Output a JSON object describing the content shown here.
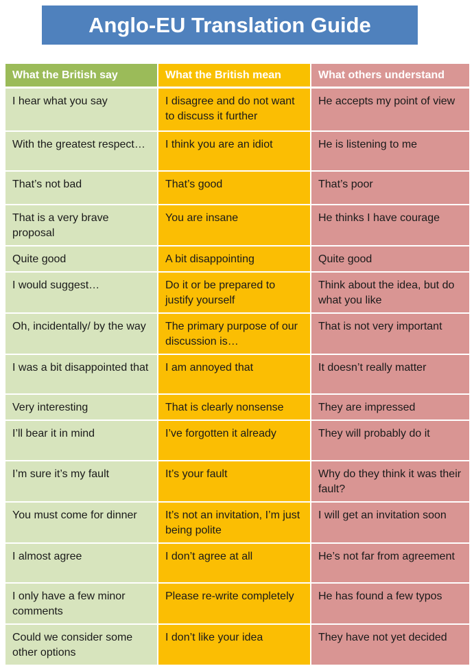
{
  "title": "Anglo-EU Translation Guide",
  "headers": [
    "What the British say",
    "What the British mean",
    "What others understand"
  ],
  "rows": [
    [
      "I hear what you say",
      "I disagree and do not want to discuss it further",
      "He accepts my point of view"
    ],
    [
      "With the greatest respect…",
      "I think you are an idiot",
      "He is listening to me"
    ],
    [
      "That’s not bad",
      "That’s good",
      "That’s poor"
    ],
    [
      "That is a very brave proposal",
      "You are insane",
      "He thinks I have courage"
    ],
    [
      "Quite good",
      "A bit disappointing",
      "Quite good"
    ],
    [
      "I would suggest…",
      "Do it or be prepared to justify yourself",
      "Think about the idea, but do what you like"
    ],
    [
      "Oh, incidentally/ by the way",
      "The primary purpose of our discussion is…",
      "That is not very important"
    ],
    [
      "I was a bit disappointed that",
      "I am annoyed that",
      "It doesn’t really matter"
    ],
    [
      "Very interesting",
      "That is clearly nonsense",
      "They are impressed"
    ],
    [
      "I’ll bear it in mind",
      "I’ve forgotten it already",
      "They will probably do it"
    ],
    [
      "I’m sure it’s my fault",
      "It’s your fault",
      "Why do they think it was their fault?"
    ],
    [
      "You must come for dinner",
      "It’s not an invitation, I’m just being polite",
      "I will get an invitation soon"
    ],
    [
      "I almost agree",
      "I don’t agree at all",
      "He’s not far from agreement"
    ],
    [
      "I only have a few minor comments",
      "Please re-write completely",
      "He has found a few typos"
    ],
    [
      "Could we consider some other options",
      "I don’t like your idea",
      "They have not yet decided"
    ]
  ],
  "colors": {
    "title_bg": "#4f81bd",
    "header_col1": "#9bbb59",
    "header_col2": "#f9c000",
    "header_col3": "#d99694",
    "col1": "#d7e4bd",
    "col2": "#fbbe03",
    "col3": "#d99593"
  }
}
